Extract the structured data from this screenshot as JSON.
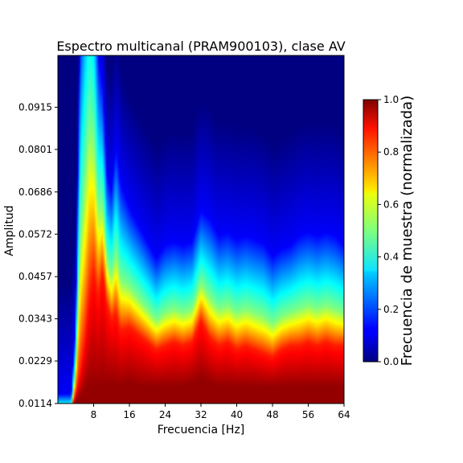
{
  "chart_data": {
    "type": "heatmap",
    "title": "Espectro multicanal (PRAM900103), clase AV",
    "xlabel": "Frecuencia [Hz]",
    "ylabel": "Amplitud",
    "xlim": [
      0,
      64
    ],
    "ylim": [
      0.0114,
      0.1055
    ],
    "x_ticks": [
      "8",
      "16",
      "24",
      "32",
      "40",
      "48",
      "56",
      "64"
    ],
    "x_tick_values": [
      8,
      16,
      24,
      32,
      40,
      48,
      56,
      64
    ],
    "y_ticks": [
      "0.0114",
      "0.0229",
      "0.0343",
      "0.0457",
      "0.0572",
      "0.0686",
      "0.0801",
      "0.0915"
    ],
    "y_tick_values": [
      0.0114,
      0.0229,
      0.0343,
      0.0457,
      0.0572,
      0.0686,
      0.0801,
      0.0915
    ],
    "colormap": "jet",
    "colorbar": {
      "label": "Frecuencia de muestra (normalizada)",
      "range": [
        0.0,
        1.0
      ],
      "ticks": [
        "0.0",
        "0.2",
        "0.4",
        "0.6",
        "0.8",
        "1.0"
      ],
      "tick_values": [
        0.0,
        0.2,
        0.4,
        0.6,
        0.8,
        1.0
      ]
    },
    "profile_description_fields": [
      "frequency_hz",
      "amplitude_at_half_intensity",
      "amplitude_at_red",
      "amplitude_at_dark_red"
    ],
    "intensity_profile": [
      [
        0,
        0.01,
        0.01,
        0.01
      ],
      [
        3,
        0.01,
        0.01,
        0.01
      ],
      [
        4,
        0.02,
        0.014,
        0.012
      ],
      [
        5,
        0.055,
        0.02,
        0.013
      ],
      [
        6,
        0.07,
        0.028,
        0.015
      ],
      [
        7,
        0.085,
        0.04,
        0.016
      ],
      [
        8,
        0.083,
        0.047,
        0.016
      ],
      [
        9,
        0.064,
        0.04,
        0.016
      ],
      [
        10,
        0.065,
        0.047,
        0.016
      ],
      [
        11,
        0.05,
        0.038,
        0.016
      ],
      [
        12,
        0.046,
        0.034,
        0.017
      ],
      [
        13,
        0.052,
        0.036,
        0.016
      ],
      [
        14,
        0.045,
        0.031,
        0.016
      ],
      [
        16,
        0.043,
        0.032,
        0.017
      ],
      [
        18,
        0.04,
        0.03,
        0.016
      ],
      [
        20,
        0.037,
        0.028,
        0.016
      ],
      [
        22,
        0.034,
        0.026,
        0.016
      ],
      [
        24,
        0.036,
        0.027,
        0.016
      ],
      [
        26,
        0.037,
        0.028,
        0.016
      ],
      [
        28,
        0.036,
        0.027,
        0.016
      ],
      [
        30,
        0.037,
        0.028,
        0.017
      ],
      [
        32,
        0.044,
        0.034,
        0.018
      ],
      [
        34,
        0.04,
        0.029,
        0.017
      ],
      [
        36,
        0.037,
        0.027,
        0.016
      ],
      [
        38,
        0.038,
        0.028,
        0.016
      ],
      [
        40,
        0.036,
        0.026,
        0.016
      ],
      [
        42,
        0.037,
        0.027,
        0.016
      ],
      [
        44,
        0.036,
        0.026,
        0.016
      ],
      [
        46,
        0.035,
        0.025,
        0.016
      ],
      [
        48,
        0.033,
        0.024,
        0.016
      ],
      [
        50,
        0.035,
        0.026,
        0.016
      ],
      [
        52,
        0.036,
        0.027,
        0.016
      ],
      [
        54,
        0.037,
        0.027,
        0.016
      ],
      [
        56,
        0.038,
        0.028,
        0.016
      ],
      [
        58,
        0.037,
        0.027,
        0.016
      ],
      [
        60,
        0.038,
        0.028,
        0.016
      ],
      [
        62,
        0.037,
        0.027,
        0.016
      ],
      [
        64,
        0.036,
        0.027,
        0.016
      ]
    ]
  }
}
